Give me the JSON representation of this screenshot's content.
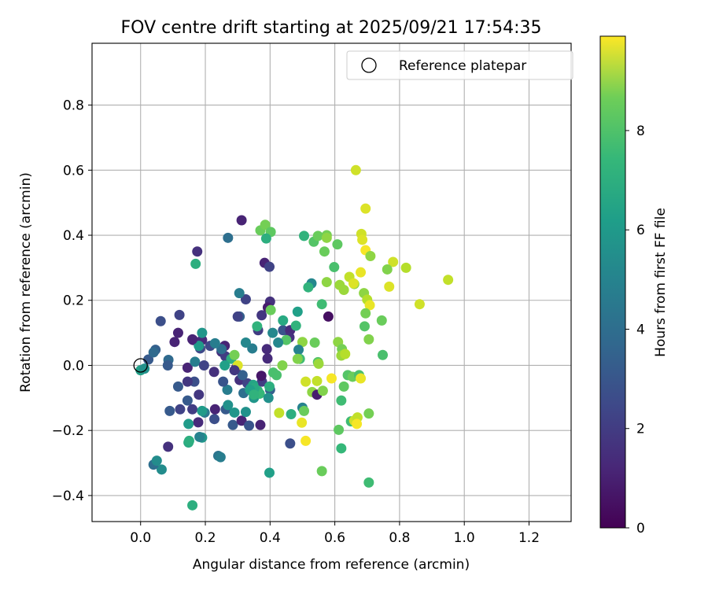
{
  "chart_data": {
    "type": "scatter",
    "title": "FOV centre drift starting at 2025/09/21 17:54:35",
    "xlabel": "Angular distance from reference (arcmin)",
    "ylabel": "Rotation from reference (arcmin)",
    "xlim": [
      -0.15,
      1.33
    ],
    "ylim": [
      -0.48,
      0.99
    ],
    "xticks": [
      0.0,
      0.2,
      0.4,
      0.6,
      0.8,
      1.0,
      1.2
    ],
    "xtick_labels": [
      "0.0",
      "0.2",
      "0.4",
      "0.6",
      "0.8",
      "1.0",
      "1.2"
    ],
    "yticks": [
      -0.4,
      -0.2,
      0.0,
      0.2,
      0.4,
      0.6,
      0.8
    ],
    "ytick_labels": [
      "−0.4",
      "−0.2",
      "0.0",
      "0.2",
      "0.4",
      "0.6",
      "0.8"
    ],
    "grid": true,
    "colorbar": {
      "label": "Hours from first FF file",
      "colormap": "viridis",
      "range": [
        0,
        9.9
      ],
      "ticks": [
        0,
        2,
        4,
        6,
        8
      ],
      "tick_labels": [
        "0",
        "2",
        "4",
        "6",
        "8"
      ]
    },
    "legend": {
      "position": "top-right",
      "entries": [
        {
          "label": "Reference platepar",
          "marker": "open-circle",
          "x": 0.0,
          "y": 0.0
        }
      ]
    },
    "points": [
      [
        0.312,
        0.446,
        1.0
      ],
      [
        0.175,
        0.35,
        1.4
      ],
      [
        0.383,
        0.315,
        1.0
      ],
      [
        0.398,
        0.303,
        2.0
      ],
      [
        0.306,
        0.15,
        3.0
      ],
      [
        0.325,
        0.203,
        2.0
      ],
      [
        0.4,
        0.196,
        1.4
      ],
      [
        0.393,
        0.178,
        0.8
      ],
      [
        0.374,
        0.154,
        1.6
      ],
      [
        0.12,
        0.155,
        2.0
      ],
      [
        0.062,
        0.136,
        2.4
      ],
      [
        0.116,
        0.1,
        1.0
      ],
      [
        0.105,
        0.072,
        1.0
      ],
      [
        0.162,
        0.078,
        0.6
      ],
      [
        0.19,
        0.078,
        1.2
      ],
      [
        0.184,
        0.052,
        2.2
      ],
      [
        0.39,
        0.05,
        1.2
      ],
      [
        0.363,
        0.108,
        1.8
      ],
      [
        0.44,
        0.108,
        2.6
      ],
      [
        0.462,
        0.108,
        1.2
      ],
      [
        0.46,
        0.086,
        1.4
      ],
      [
        0.392,
        0.021,
        1.2
      ],
      [
        0.145,
        -0.007,
        1.0
      ],
      [
        0.024,
        0.018,
        2.8
      ],
      [
        0.046,
        0.048,
        3.0
      ],
      [
        0.086,
        0.017,
        3.4
      ],
      [
        0.084,
        0.0,
        2.8
      ],
      [
        0.168,
        0.011,
        4.2
      ],
      [
        0.227,
        -0.02,
        1.4
      ],
      [
        0.25,
        0.042,
        1.4
      ],
      [
        0.262,
        0.028,
        1.8
      ],
      [
        0.26,
        0.06,
        1.0
      ],
      [
        0.295,
        -0.008,
        1.2
      ],
      [
        0.306,
        -0.045,
        1.4
      ],
      [
        0.33,
        -0.055,
        2.0
      ],
      [
        0.375,
        -0.05,
        1.8
      ],
      [
        0.166,
        -0.05,
        2.4
      ],
      [
        0.145,
        -0.05,
        1.6
      ],
      [
        0.116,
        -0.065,
        2.8
      ],
      [
        0.18,
        -0.09,
        1.6
      ],
      [
        0.09,
        -0.14,
        2.8
      ],
      [
        0.122,
        -0.135,
        2.0
      ],
      [
        0.145,
        -0.108,
        2.8
      ],
      [
        0.16,
        -0.135,
        1.8
      ],
      [
        0.178,
        -0.175,
        1.2
      ],
      [
        0.198,
        -0.145,
        4.0
      ],
      [
        0.228,
        -0.165,
        2.4
      ],
      [
        0.23,
        -0.135,
        1.0
      ],
      [
        0.263,
        -0.135,
        2.8
      ],
      [
        0.285,
        -0.183,
        2.8
      ],
      [
        0.312,
        -0.17,
        1.0
      ],
      [
        0.335,
        -0.185,
        2.6
      ],
      [
        0.37,
        -0.183,
        1.0
      ],
      [
        0.4,
        -0.075,
        3.0
      ],
      [
        0.462,
        -0.24,
        2.4
      ],
      [
        0.085,
        -0.25,
        1.4
      ],
      [
        0.065,
        -0.32,
        4.8
      ],
      [
        0.04,
        -0.305,
        3.6
      ],
      [
        0.05,
        -0.293,
        4.8
      ],
      [
        0.16,
        -0.43,
        6.2
      ],
      [
        0.24,
        -0.278,
        3.8
      ],
      [
        0.247,
        -0.282,
        4.2
      ],
      [
        0.19,
        -0.222,
        5.2
      ],
      [
        0.182,
        -0.22,
        4.4
      ],
      [
        0.148,
        -0.237,
        6.0
      ],
      [
        0.15,
        -0.232,
        6.2
      ],
      [
        0.148,
        -0.18,
        5.4
      ],
      [
        0.19,
        -0.14,
        5.4
      ],
      [
        0.27,
        -0.122,
        5.0
      ],
      [
        0.29,
        -0.145,
        5.2
      ],
      [
        0.325,
        -0.143,
        5.0
      ],
      [
        0.268,
        -0.075,
        4.2
      ],
      [
        0.34,
        -0.07,
        5.0
      ],
      [
        0.35,
        -0.1,
        5.2
      ],
      [
        0.362,
        -0.078,
        6.4
      ],
      [
        0.368,
        -0.087,
        6.6
      ],
      [
        0.348,
        -0.06,
        5.8
      ],
      [
        0.398,
        -0.065,
        6.2
      ],
      [
        0.395,
        -0.1,
        5.0
      ],
      [
        0.5,
        -0.13,
        4.4
      ],
      [
        0.465,
        -0.15,
        6.2
      ],
      [
        0.398,
        -0.33,
        5.6
      ],
      [
        0.705,
        -0.36,
        6.8
      ],
      [
        0.62,
        -0.255,
        6.6
      ],
      [
        0.612,
        -0.198,
        7.4
      ],
      [
        0.575,
        0.4,
        7.8
      ],
      [
        0.65,
        -0.172,
        6.8
      ],
      [
        0.25,
        0.05,
        3.6
      ],
      [
        0.28,
        0.02,
        6.2
      ],
      [
        0.29,
        0.032,
        7.8
      ],
      [
        0.3,
        0.0,
        9.4
      ],
      [
        0.26,
        0.0,
        5.6
      ],
      [
        0.19,
        0.1,
        5.2
      ],
      [
        0.18,
        0.06,
        5.4
      ],
      [
        0.17,
        0.312,
        6.2
      ],
      [
        0.27,
        0.392,
        3.6
      ],
      [
        0.37,
        0.415,
        7.6
      ],
      [
        0.385,
        0.432,
        7.8
      ],
      [
        0.402,
        0.41,
        7.4
      ],
      [
        0.388,
        0.39,
        6.2
      ],
      [
        0.505,
        0.398,
        6.4
      ],
      [
        0.535,
        0.38,
        7.2
      ],
      [
        0.548,
        0.398,
        7.6
      ],
      [
        0.568,
        0.35,
        7.6
      ],
      [
        0.608,
        0.372,
        7.4
      ],
      [
        0.575,
        0.392,
        8.2
      ],
      [
        0.528,
        0.252,
        4.6
      ],
      [
        0.518,
        0.24,
        6.4
      ],
      [
        0.56,
        0.188,
        6.8
      ],
      [
        0.598,
        0.302,
        7.0
      ],
      [
        0.575,
        0.256,
        8.2
      ],
      [
        0.615,
        0.247,
        8.4
      ],
      [
        0.628,
        0.232,
        8.4
      ],
      [
        0.645,
        0.272,
        9.0
      ],
      [
        0.66,
        0.25,
        8.0
      ],
      [
        0.69,
        0.222,
        8.2
      ],
      [
        0.7,
        0.202,
        8.8
      ],
      [
        0.708,
        0.185,
        9.6
      ],
      [
        0.695,
        0.16,
        7.8
      ],
      [
        0.745,
        0.138,
        7.6
      ],
      [
        0.692,
        0.12,
        7.2
      ],
      [
        0.705,
        0.08,
        8.0
      ],
      [
        0.61,
        0.072,
        8.2
      ],
      [
        0.622,
        0.05,
        7.8
      ],
      [
        0.62,
        0.03,
        8.4
      ],
      [
        0.632,
        0.035,
        8.8
      ],
      [
        0.748,
        0.032,
        7.0
      ],
      [
        0.665,
        0.6,
        9.2
      ],
      [
        0.695,
        0.482,
        9.4
      ],
      [
        0.682,
        0.404,
        9.2
      ],
      [
        0.685,
        0.386,
        9.4
      ],
      [
        0.695,
        0.354,
        9.8
      ],
      [
        0.71,
        0.336,
        8.2
      ],
      [
        0.78,
        0.318,
        9.2
      ],
      [
        0.762,
        0.295,
        8.0
      ],
      [
        0.82,
        0.3,
        8.8
      ],
      [
        0.768,
        0.242,
        9.4
      ],
      [
        0.862,
        0.188,
        9.2
      ],
      [
        0.95,
        0.263,
        9.0
      ],
      [
        0.68,
        0.286,
        9.6
      ],
      [
        0.658,
        0.252,
        9.4
      ],
      [
        0.402,
        0.17,
        7.6
      ],
      [
        0.44,
        0.138,
        6.0
      ],
      [
        0.485,
        0.165,
        5.6
      ],
      [
        0.48,
        0.122,
        6.4
      ],
      [
        0.45,
        0.078,
        7.2
      ],
      [
        0.5,
        0.072,
        8.2
      ],
      [
        0.538,
        0.07,
        7.6
      ],
      [
        0.488,
        0.048,
        4.4
      ],
      [
        0.492,
        0.02,
        6.8
      ],
      [
        0.485,
        0.02,
        8.0
      ],
      [
        0.438,
        0.0,
        8.0
      ],
      [
        0.41,
        -0.022,
        7.0
      ],
      [
        0.42,
        -0.03,
        7.0
      ],
      [
        0.548,
        0.01,
        7.2
      ],
      [
        0.55,
        0.005,
        8.4
      ],
      [
        0.545,
        -0.048,
        9.0
      ],
      [
        0.51,
        -0.05,
        9.2
      ],
      [
        0.53,
        -0.082,
        8.2
      ],
      [
        0.545,
        -0.09,
        0.8
      ],
      [
        0.563,
        -0.078,
        8.0
      ],
      [
        0.59,
        -0.04,
        9.8
      ],
      [
        0.64,
        -0.03,
        7.2
      ],
      [
        0.655,
        -0.035,
        7.6
      ],
      [
        0.675,
        -0.03,
        7.0
      ],
      [
        0.68,
        -0.04,
        9.6
      ],
      [
        0.66,
        -0.17,
        9.2
      ],
      [
        0.67,
        -0.16,
        9.0
      ],
      [
        0.668,
        -0.18,
        9.8
      ],
      [
        0.705,
        -0.148,
        7.8
      ],
      [
        0.628,
        -0.065,
        7.4
      ],
      [
        0.62,
        -0.108,
        6.8
      ],
      [
        0.505,
        -0.14,
        7.6
      ],
      [
        0.498,
        -0.176,
        9.6
      ],
      [
        0.51,
        -0.232,
        9.8
      ],
      [
        0.56,
        -0.325,
        7.6
      ],
      [
        0.428,
        -0.146,
        9.0
      ],
      [
        0.58,
        0.15,
        0.4
      ],
      [
        0.345,
        0.052,
        4.2
      ],
      [
        0.36,
        0.12,
        6.4
      ],
      [
        0.408,
        0.1,
        4.6
      ],
      [
        0.215,
        0.06,
        2.2
      ],
      [
        0.196,
        0.0,
        2.0
      ],
      [
        0.0,
        -0.015,
        5.6
      ],
      [
        0.012,
        -0.01,
        5.0
      ],
      [
        0.255,
        -0.05,
        2.6
      ],
      [
        0.318,
        -0.085,
        3.6
      ],
      [
        0.315,
        -0.03,
        3.0
      ],
      [
        0.29,
        -0.015,
        1.6
      ],
      [
        0.373,
        -0.032,
        0.6
      ],
      [
        0.425,
        0.07,
        4.6
      ],
      [
        0.325,
        0.07,
        4.6
      ],
      [
        0.23,
        0.068,
        4.2
      ],
      [
        0.305,
        0.222,
        4.2
      ],
      [
        0.16,
        0.08,
        1.0
      ],
      [
        0.04,
        0.04,
        3.4
      ],
      [
        0.3,
        0.15,
        2.0
      ],
      [
        0.352,
        -0.07,
        6.0
      ],
      [
        0.338,
        -0.075,
        5.6
      ],
      [
        0.35,
        -0.09,
        6.4
      ]
    ]
  }
}
